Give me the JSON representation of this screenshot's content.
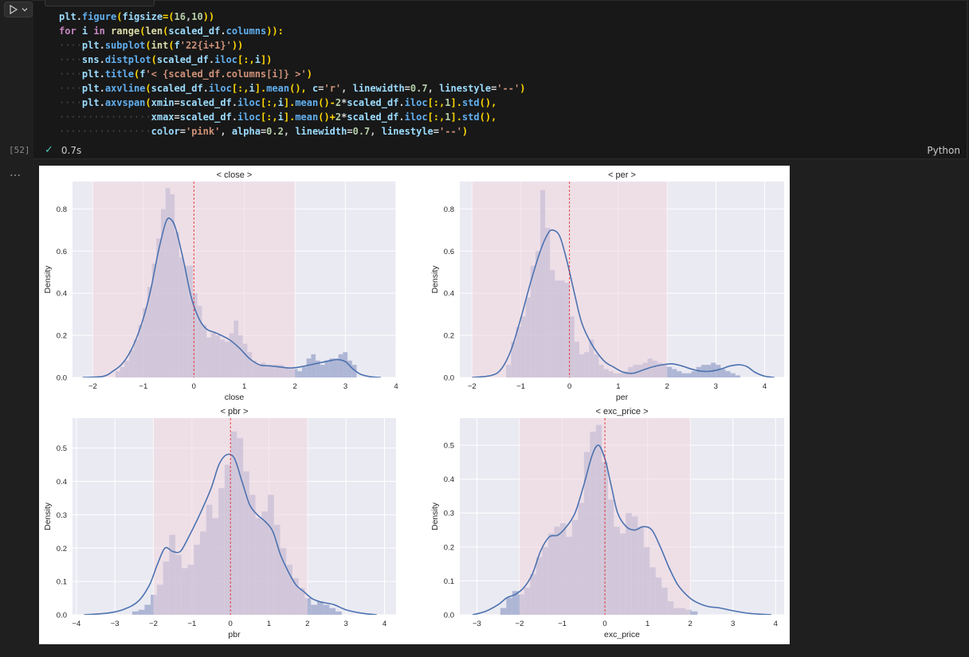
{
  "cell": {
    "exec_count": "[52]",
    "status_time": "0.7s",
    "language": "Python",
    "output_menu": "…",
    "code_lines": [
      "plt.figure(figsize=(16,10))",
      "for i in range(len(scaled_df.columns)):",
      "    plt.subplot(int(f'22{i+1}'))",
      "    sns.distplot(scaled_df.iloc[:,i])",
      "    plt.title(f'< {scaled_df.columns[i]} >')",
      "    plt.axvline(scaled_df.iloc[:,i].mean(), c='r', linewidth=0.7, linestyle='--')",
      "    plt.axvspan(xmin=scaled_df.iloc[:,i].mean()-2*scaled_df.iloc[:,1].std(),",
      "                xmax=scaled_df.iloc[:,i].mean()+2*scaled_df.iloc[:,1].std(),",
      "                color='pink', alpha=0.2, linewidth=0.7, linestyle='--')"
    ]
  },
  "colors": {
    "axes_bg": "#eaeaf2",
    "grid": "#ffffff",
    "bars": "#a3add0",
    "kde": "#4c72b0",
    "span": "#f0d6de",
    "mean_line": "#e31a1c"
  },
  "chart_data": [
    {
      "type": "bar",
      "title": "< close >",
      "xlabel": "close",
      "ylabel": "Density",
      "xlim": [
        -2.4,
        4.0
      ],
      "ylim": [
        0,
        0.93
      ],
      "xticks": [
        -2,
        -1,
        0,
        1,
        2,
        3,
        4
      ],
      "yticks": [
        0.0,
        0.2,
        0.4,
        0.6,
        0.8
      ],
      "span": [
        -2.0,
        2.0
      ],
      "mean": 0.0,
      "bins": {
        "start": -1.55,
        "width": 0.09,
        "values": [
          0.03,
          0.05,
          0.08,
          0.13,
          0.18,
          0.25,
          0.33,
          0.43,
          0.54,
          0.66,
          0.8,
          0.9,
          0.87,
          0.69,
          0.57,
          0.53,
          0.53,
          0.4,
          0.34,
          0.25,
          0.19,
          0.21,
          0.2,
          0.18,
          0.17,
          0.21,
          0.27,
          0.2,
          0.16,
          0.12,
          0.08,
          0.06,
          0.07,
          0.06,
          0.06,
          0.06,
          0.06,
          0.05,
          0.04,
          0.04,
          0.03,
          0.05,
          0.09,
          0.11,
          0.08,
          0.06,
          0.08,
          0.09,
          0.09,
          0.11,
          0.12,
          0.08,
          0.06
        ]
      },
      "kde": [
        [
          -2.2,
          0
        ],
        [
          -1.8,
          0.005
        ],
        [
          -1.6,
          0.03
        ],
        [
          -1.4,
          0.07
        ],
        [
          -1.2,
          0.15
        ],
        [
          -1.0,
          0.28
        ],
        [
          -0.85,
          0.42
        ],
        [
          -0.7,
          0.6
        ],
        [
          -0.55,
          0.74
        ],
        [
          -0.45,
          0.75
        ],
        [
          -0.35,
          0.7
        ],
        [
          -0.2,
          0.55
        ],
        [
          -0.05,
          0.38
        ],
        [
          0.1,
          0.28
        ],
        [
          0.25,
          0.23
        ],
        [
          0.45,
          0.21
        ],
        [
          0.7,
          0.18
        ],
        [
          0.9,
          0.14
        ],
        [
          1.1,
          0.09
        ],
        [
          1.3,
          0.06
        ],
        [
          1.5,
          0.055
        ],
        [
          1.7,
          0.05
        ],
        [
          1.9,
          0.045
        ],
        [
          2.1,
          0.05
        ],
        [
          2.3,
          0.06
        ],
        [
          2.5,
          0.07
        ],
        [
          2.7,
          0.08
        ],
        [
          2.85,
          0.085
        ],
        [
          3.0,
          0.075
        ],
        [
          3.15,
          0.04
        ],
        [
          3.3,
          0.015
        ],
        [
          3.5,
          0.003
        ],
        [
          3.7,
          0
        ]
      ]
    },
    {
      "type": "bar",
      "title": "< per >",
      "xlabel": "per",
      "ylabel": "Density",
      "xlim": [
        -2.25,
        4.4
      ],
      "ylim": [
        0,
        0.93
      ],
      "xticks": [
        -2,
        -1,
        0,
        1,
        2,
        3,
        4
      ],
      "yticks": [
        0.0,
        0.2,
        0.4,
        0.6,
        0.8
      ],
      "span": [
        -2.0,
        2.0
      ],
      "mean": 0.0,
      "bins": {
        "start": -1.3,
        "width": 0.1,
        "values": [
          0.06,
          0.17,
          0.24,
          0.29,
          0.38,
          0.53,
          0.6,
          0.89,
          0.71,
          0.51,
          0.46,
          0.46,
          0.45,
          0.29,
          0.17,
          0.11,
          0.12,
          0.18,
          0.11,
          0.06,
          0.04,
          0.03,
          0.02,
          0.02,
          0.03,
          0.05,
          0.06,
          0.06,
          0.07,
          0.09,
          0.08,
          0.07,
          0.06,
          0.05,
          0.04,
          0.03,
          0.02,
          0.02,
          0.03,
          0.05,
          0.06,
          0.06,
          0.07,
          0.06,
          0.04,
          0.03,
          0.02,
          0.01
        ]
      },
      "kde": [
        [
          -2.0,
          0
        ],
        [
          -1.6,
          0.01
        ],
        [
          -1.4,
          0.04
        ],
        [
          -1.2,
          0.13
        ],
        [
          -1.0,
          0.28
        ],
        [
          -0.8,
          0.45
        ],
        [
          -0.6,
          0.6
        ],
        [
          -0.45,
          0.68
        ],
        [
          -0.35,
          0.7
        ],
        [
          -0.2,
          0.67
        ],
        [
          -0.05,
          0.55
        ],
        [
          0.1,
          0.4
        ],
        [
          0.25,
          0.26
        ],
        [
          0.45,
          0.16
        ],
        [
          0.7,
          0.08
        ],
        [
          0.9,
          0.05
        ],
        [
          1.1,
          0.025
        ],
        [
          1.3,
          0.02
        ],
        [
          1.5,
          0.035
        ],
        [
          1.7,
          0.05
        ],
        [
          1.9,
          0.06
        ],
        [
          2.1,
          0.065
        ],
        [
          2.3,
          0.055
        ],
        [
          2.5,
          0.04
        ],
        [
          2.7,
          0.03
        ],
        [
          2.9,
          0.03
        ],
        [
          3.1,
          0.04
        ],
        [
          3.3,
          0.055
        ],
        [
          3.5,
          0.06
        ],
        [
          3.65,
          0.05
        ],
        [
          3.8,
          0.025
        ],
        [
          4.0,
          0.006
        ],
        [
          4.2,
          0
        ]
      ]
    },
    {
      "type": "bar",
      "title": "< pbr >",
      "xlabel": "pbr",
      "ylabel": "Density",
      "xlim": [
        -4.1,
        4.3
      ],
      "ylim": [
        0,
        0.59
      ],
      "xticks": [
        -4,
        -3,
        -2,
        -1,
        0,
        1,
        2,
        3,
        4
      ],
      "yticks": [
        0.0,
        0.1,
        0.2,
        0.3,
        0.4,
        0.5
      ],
      "span": [
        -2.0,
        2.0
      ],
      "mean": 0.0,
      "bins": {
        "start": -2.55,
        "width": 0.16,
        "values": [
          0.01,
          0.015,
          0.03,
          0.06,
          0.09,
          0.16,
          0.24,
          0.18,
          0.14,
          0.15,
          0.21,
          0.25,
          0.33,
          0.29,
          0.38,
          0.45,
          0.55,
          0.53,
          0.43,
          0.36,
          0.29,
          0.31,
          0.36,
          0.27,
          0.2,
          0.15,
          0.11,
          0.08,
          0.05,
          0.03,
          0.04,
          0.03,
          0.02,
          0.01
        ]
      },
      "kde": [
        [
          -3.8,
          0
        ],
        [
          -3.2,
          0.005
        ],
        [
          -2.8,
          0.015
        ],
        [
          -2.4,
          0.04
        ],
        [
          -2.1,
          0.09
        ],
        [
          -1.9,
          0.15
        ],
        [
          -1.7,
          0.2
        ],
        [
          -1.5,
          0.19
        ],
        [
          -1.3,
          0.19
        ],
        [
          -1.1,
          0.23
        ],
        [
          -0.8,
          0.3
        ],
        [
          -0.5,
          0.38
        ],
        [
          -0.3,
          0.45
        ],
        [
          -0.1,
          0.48
        ],
        [
          0.1,
          0.47
        ],
        [
          0.3,
          0.4
        ],
        [
          0.5,
          0.33
        ],
        [
          0.7,
          0.3
        ],
        [
          0.9,
          0.28
        ],
        [
          1.1,
          0.25
        ],
        [
          1.3,
          0.18
        ],
        [
          1.5,
          0.13
        ],
        [
          1.7,
          0.09
        ],
        [
          1.9,
          0.07
        ],
        [
          2.1,
          0.05
        ],
        [
          2.3,
          0.04
        ],
        [
          2.5,
          0.035
        ],
        [
          2.7,
          0.03
        ],
        [
          3.0,
          0.015
        ],
        [
          3.4,
          0.005
        ],
        [
          3.8,
          0
        ]
      ]
    },
    {
      "type": "bar",
      "title": "< exc_price >",
      "xlabel": "exc_price",
      "ylabel": "Density",
      "xlim": [
        -3.4,
        4.2
      ],
      "ylim": [
        0,
        0.58
      ],
      "xticks": [
        -3,
        -2,
        -1,
        0,
        1,
        2,
        3,
        4
      ],
      "yticks": [
        0.0,
        0.1,
        0.2,
        0.3,
        0.4,
        0.5
      ],
      "span": [
        -2.0,
        2.0
      ],
      "mean": 0.0,
      "bins": {
        "start": -2.45,
        "width": 0.14,
        "values": [
          0.02,
          0.05,
          0.07,
          0.06,
          0.08,
          0.12,
          0.17,
          0.2,
          0.24,
          0.26,
          0.27,
          0.23,
          0.28,
          0.33,
          0.48,
          0.54,
          0.56,
          0.45,
          0.34,
          0.26,
          0.24,
          0.3,
          0.29,
          0.26,
          0.2,
          0.14,
          0.11,
          0.08,
          0.04,
          0.02,
          0.02,
          0.015,
          0.01
        ]
      },
      "kde": [
        [
          -3.1,
          0
        ],
        [
          -2.8,
          0.01
        ],
        [
          -2.5,
          0.03
        ],
        [
          -2.3,
          0.05
        ],
        [
          -2.1,
          0.06
        ],
        [
          -1.9,
          0.08
        ],
        [
          -1.7,
          0.12
        ],
        [
          -1.5,
          0.19
        ],
        [
          -1.3,
          0.23
        ],
        [
          -1.1,
          0.235
        ],
        [
          -0.9,
          0.26
        ],
        [
          -0.7,
          0.3
        ],
        [
          -0.5,
          0.38
        ],
        [
          -0.3,
          0.47
        ],
        [
          -0.15,
          0.5
        ],
        [
          0.0,
          0.46
        ],
        [
          0.15,
          0.38
        ],
        [
          0.3,
          0.3
        ],
        [
          0.5,
          0.26
        ],
        [
          0.7,
          0.25
        ],
        [
          0.9,
          0.26
        ],
        [
          1.1,
          0.25
        ],
        [
          1.3,
          0.2
        ],
        [
          1.5,
          0.14
        ],
        [
          1.7,
          0.09
        ],
        [
          1.9,
          0.06
        ],
        [
          2.1,
          0.04
        ],
        [
          2.4,
          0.025
        ],
        [
          2.7,
          0.02
        ],
        [
          3.0,
          0.012
        ],
        [
          3.4,
          0.004
        ],
        [
          3.9,
          0
        ]
      ]
    }
  ]
}
